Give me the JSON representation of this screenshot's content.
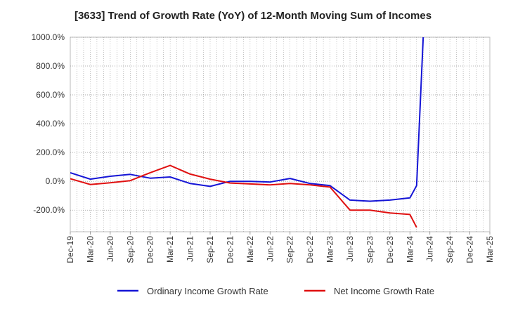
{
  "chart_data": {
    "type": "line",
    "title": "[3633]  Trend of Growth Rate (YoY) of 12-Month Moving Sum of Incomes",
    "xlabel": "",
    "ylabel": "",
    "y_tick_labels": [
      "-200.0%",
      "0.0%",
      "200.0%",
      "400.0%",
      "600.0%",
      "800.0%",
      "1000.0%"
    ],
    "y_ticks": [
      -200,
      0,
      200,
      400,
      600,
      800,
      1000
    ],
    "ylim": [
      -350,
      1000
    ],
    "x_tick_labels": [
      "Dec-19",
      "Mar-20",
      "Jun-20",
      "Sep-20",
      "Dec-20",
      "Mar-21",
      "Jun-21",
      "Sep-21",
      "Dec-21",
      "Mar-22",
      "Jun-22",
      "Sep-22",
      "Dec-22",
      "Mar-23",
      "Jun-23",
      "Sep-23",
      "Dec-23",
      "Mar-24",
      "Jun-24",
      "Sep-24",
      "Dec-24",
      "Mar-25"
    ],
    "months_from_start_note": "x values are month indices; Dec-19 = 0, Mar-25 = 63",
    "grid": true,
    "legend_position": "bottom",
    "series": [
      {
        "name": "Ordinary Income Growth Rate",
        "color": "#1515d6",
        "x": [
          0,
          3,
          6,
          9,
          12,
          15,
          18,
          21,
          24,
          27,
          30,
          33,
          36,
          39,
          42,
          45,
          48,
          51,
          52,
          53
        ],
        "values": [
          60,
          15,
          35,
          48,
          22,
          30,
          -15,
          -35,
          0,
          0,
          -5,
          20,
          -15,
          -30,
          -130,
          -138,
          -130,
          -115,
          -30,
          1000
        ]
      },
      {
        "name": "Net Income Growth Rate",
        "color": "#e01010",
        "x": [
          0,
          3,
          6,
          9,
          12,
          15,
          18,
          21,
          24,
          27,
          30,
          33,
          36,
          39,
          42,
          45,
          48,
          51,
          52
        ],
        "values": [
          18,
          -22,
          -10,
          5,
          60,
          110,
          50,
          15,
          -12,
          -18,
          -25,
          -15,
          -25,
          -40,
          -200,
          -200,
          -220,
          -230,
          -320
        ]
      }
    ]
  }
}
